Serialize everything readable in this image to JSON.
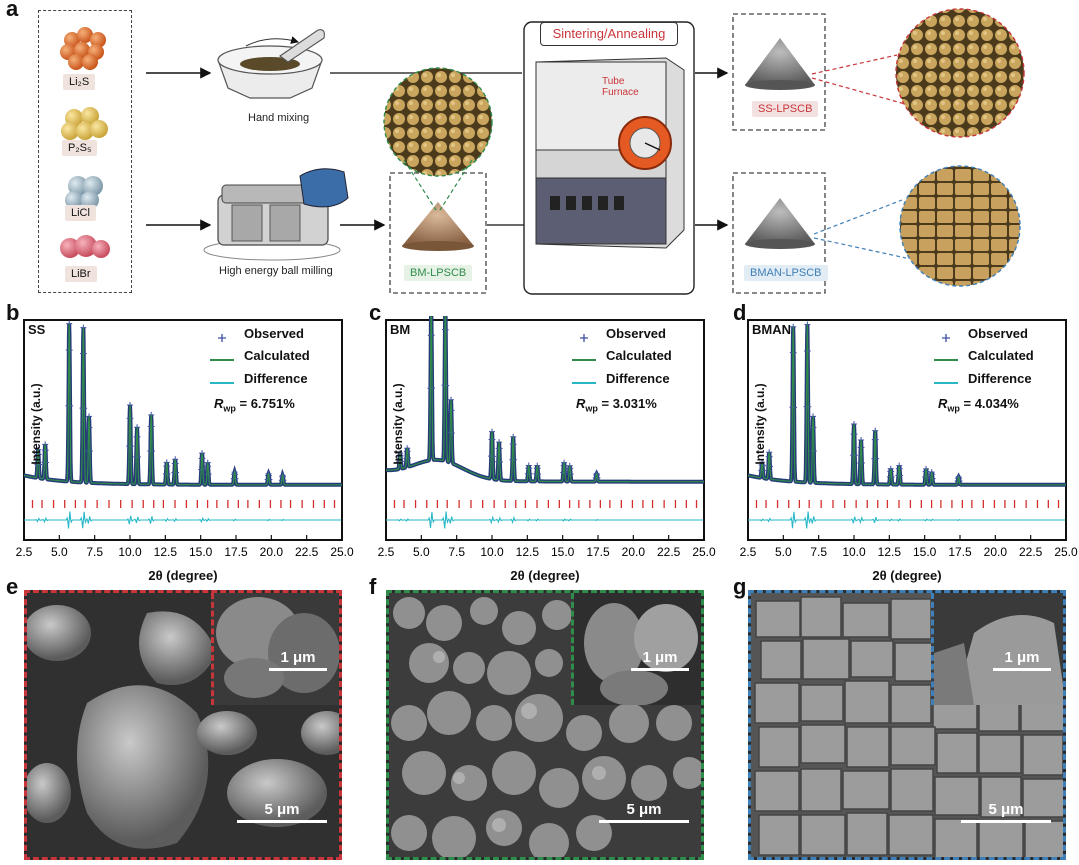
{
  "panel_a": {
    "letter": "a",
    "precursors": [
      {
        "label": "Li₂S",
        "color": "#e2722f"
      },
      {
        "label": "P₂S₅",
        "color": "#e8c65a"
      },
      {
        "label": "LiCl",
        "color": "#9fb8c6"
      },
      {
        "label": "LiBr",
        "color": "#e06b7b"
      }
    ],
    "hand_mixing": "Hand mixing",
    "ball_milling": "High energy ball milling",
    "bm_label": "BM-LPSCB",
    "sintering": "Sintering/Annealing",
    "furnace": "Tube\nFurnace",
    "ss_label": "SS-LPSCB",
    "bman_label": "BMAN-LPSCB",
    "colors": {
      "red": "#c8353a",
      "green": "#2f8c4a",
      "blue": "#3e7fb7"
    }
  },
  "xrd": [
    {
      "letter": "b",
      "sample": "SS",
      "rwp_label": "R",
      "rwp_sub": "wp",
      "rwp_value": " = 6.751%",
      "ylabel": "Intensity (a.u.)",
      "xlabel": "2θ (degree)",
      "legend": [
        "Observed",
        "Calculated",
        "Difference"
      ]
    },
    {
      "letter": "c",
      "sample": "BM",
      "rwp_label": "R",
      "rwp_sub": "wp",
      "rwp_value": " = 3.031%",
      "ylabel": "Intensity (a.u.)",
      "xlabel": "2θ (degree)",
      "legend": [
        "Observed",
        "Calculated",
        "Difference"
      ]
    },
    {
      "letter": "d",
      "sample": "BMAN",
      "rwp_label": "R",
      "rwp_sub": "wp",
      "rwp_value": " = 4.034%",
      "ylabel": "Intensity (a.u.)",
      "xlabel": "2θ (degree)",
      "legend": [
        "Observed",
        "Calculated",
        "Difference"
      ]
    }
  ],
  "chart_data": [
    {
      "type": "line",
      "title": "SS",
      "xlabel": "2θ (degree)",
      "ylabel": "Intensity (a.u.)",
      "xlim": [
        2.5,
        25.0
      ],
      "xticks": [
        "2.5",
        "5.0",
        "7.5",
        "10.0",
        "12.5",
        "15.0",
        "17.5",
        "20.0",
        "22.5",
        "25.0"
      ],
      "peaks": [
        [
          3.5,
          0.18
        ],
        [
          4.0,
          0.22
        ],
        [
          5.7,
          1.0
        ],
        [
          6.7,
          0.98
        ],
        [
          7.1,
          0.42
        ],
        [
          10.0,
          0.5
        ],
        [
          10.5,
          0.36
        ],
        [
          11.5,
          0.44
        ],
        [
          12.6,
          0.14
        ],
        [
          13.2,
          0.16
        ],
        [
          15.1,
          0.2
        ],
        [
          15.5,
          0.14
        ],
        [
          17.4,
          0.08
        ],
        [
          19.8,
          0.07
        ],
        [
          20.8,
          0.06
        ]
      ],
      "baseline": 0.02,
      "hump": 0.0,
      "series": [
        {
          "name": "Observed"
        },
        {
          "name": "Calculated"
        },
        {
          "name": "Difference"
        }
      ]
    },
    {
      "type": "line",
      "title": "BM",
      "xlabel": "2θ (degree)",
      "ylabel": "Intensity (a.u.)",
      "xlim": [
        2.5,
        25.0
      ],
      "xticks": [
        "2.5",
        "5.0",
        "7.5",
        "10.0",
        "12.5",
        "15.0",
        "17.5",
        "20.0",
        "22.5",
        "25.0"
      ],
      "peaks": [
        [
          3.5,
          0.1
        ],
        [
          4.0,
          0.12
        ],
        [
          5.7,
          0.95
        ],
        [
          6.7,
          1.0
        ],
        [
          7.1,
          0.4
        ],
        [
          10.0,
          0.3
        ],
        [
          10.5,
          0.24
        ],
        [
          11.5,
          0.28
        ],
        [
          12.6,
          0.1
        ],
        [
          13.2,
          0.1
        ],
        [
          15.1,
          0.12
        ],
        [
          15.5,
          0.1
        ],
        [
          17.4,
          0.05
        ]
      ],
      "baseline": 0.04,
      "hump": 0.12,
      "series": [
        {
          "name": "Observed"
        },
        {
          "name": "Calculated"
        },
        {
          "name": "Difference"
        }
      ]
    },
    {
      "type": "line",
      "title": "BMAN",
      "xlabel": "2θ (degree)",
      "ylabel": "Intensity (a.u.)",
      "xlim": [
        2.5,
        25.0
      ],
      "xticks": [
        "2.5",
        "5.0",
        "7.5",
        "10.0",
        "12.5",
        "15.0",
        "17.5",
        "20.0",
        "22.5",
        "25.0"
      ],
      "peaks": [
        [
          3.5,
          0.1
        ],
        [
          4.0,
          0.17
        ],
        [
          5.7,
          0.98
        ],
        [
          6.7,
          1.0
        ],
        [
          7.1,
          0.42
        ],
        [
          10.0,
          0.38
        ],
        [
          10.5,
          0.28
        ],
        [
          11.5,
          0.34
        ],
        [
          12.6,
          0.1
        ],
        [
          13.2,
          0.12
        ],
        [
          15.1,
          0.1
        ],
        [
          15.5,
          0.08
        ],
        [
          17.4,
          0.05
        ]
      ],
      "baseline": 0.02,
      "hump": 0.0,
      "series": [
        {
          "name": "Observed"
        },
        {
          "name": "Calculated"
        },
        {
          "name": "Difference"
        }
      ]
    }
  ],
  "sem": [
    {
      "letter": "e",
      "inset_scale": "1 μm",
      "main_scale": "5 μm",
      "border": "#c8353a"
    },
    {
      "letter": "f",
      "inset_scale": "1 μm",
      "main_scale": "5 μm",
      "border": "#2f8c4a"
    },
    {
      "letter": "g",
      "inset_scale": "1 μm",
      "main_scale": "5 μm",
      "border": "#3e7fb7"
    }
  ]
}
